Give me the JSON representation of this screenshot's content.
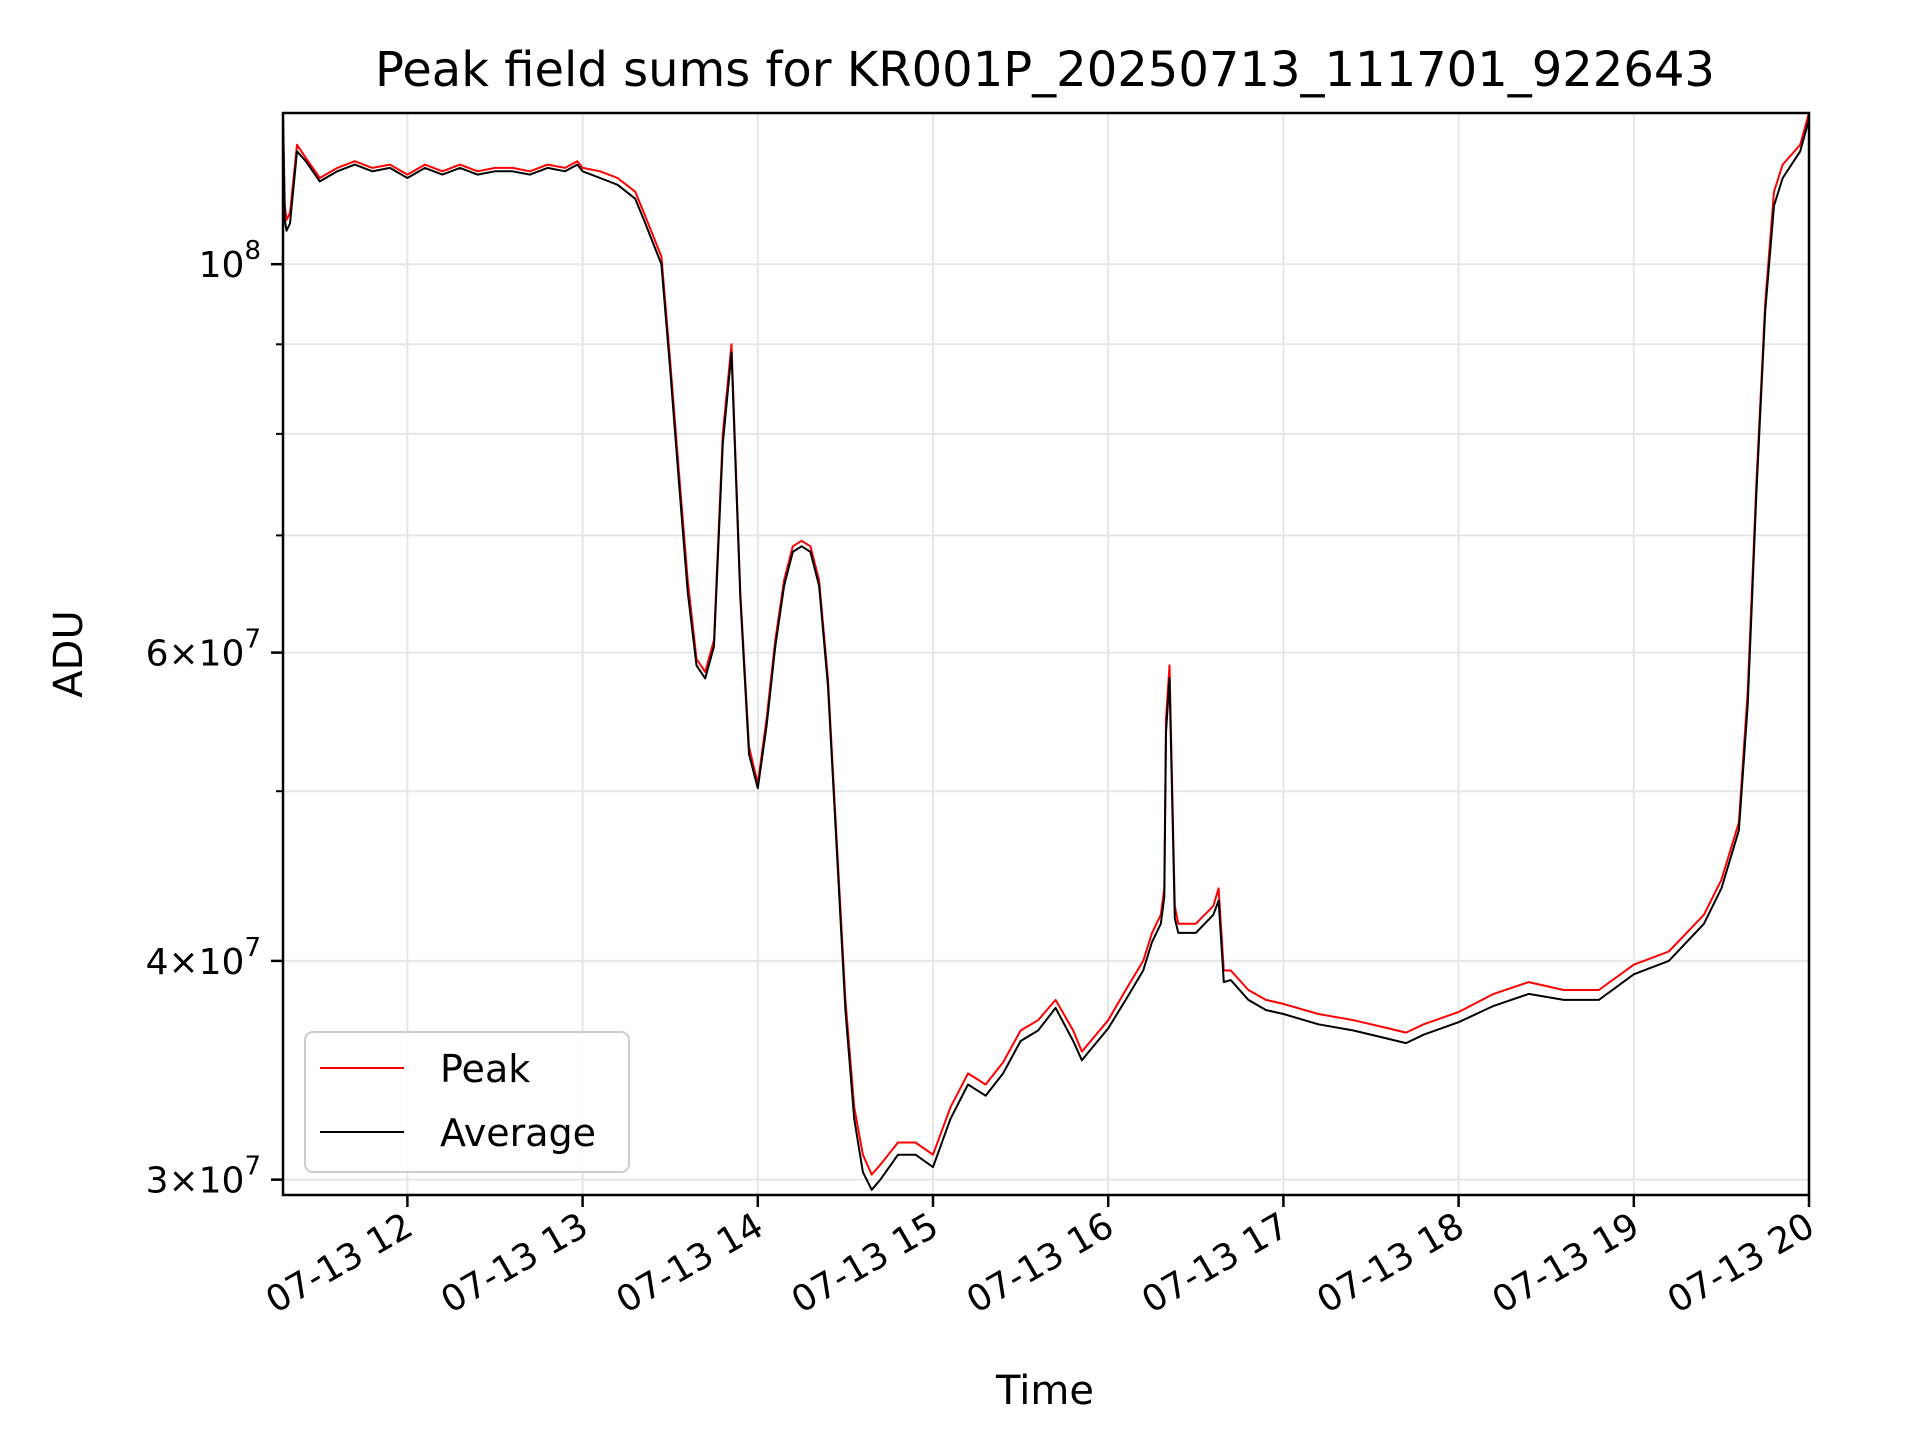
{
  "chart_data": {
    "type": "line",
    "title": "Peak field sums for KR001P_20250713_111701_922643",
    "xlabel": "Time",
    "ylabel": "ADU",
    "x_unit": "hours on 2025-07-13",
    "xlim": [
      11.29,
      20.0
    ],
    "ylim": [
      29400000,
      122000000
    ],
    "yscale": "log",
    "grid": true,
    "legend_position": "lower-left",
    "x_ticks": [
      {
        "value": 12,
        "label": "07-13 12"
      },
      {
        "value": 13,
        "label": "07-13 13"
      },
      {
        "value": 14,
        "label": "07-13 14"
      },
      {
        "value": 15,
        "label": "07-13 15"
      },
      {
        "value": 16,
        "label": "07-13 16"
      },
      {
        "value": 17,
        "label": "07-13 17"
      },
      {
        "value": 18,
        "label": "07-13 18"
      },
      {
        "value": 19,
        "label": "07-13 19"
      },
      {
        "value": 20,
        "label": "07-13 20"
      }
    ],
    "y_major_ticks": [
      {
        "value": 30000000,
        "mantissa": "3",
        "times": "×",
        "base": "10",
        "exp": "7"
      },
      {
        "value": 40000000,
        "mantissa": "4",
        "times": "×",
        "base": "10",
        "exp": "7"
      },
      {
        "value": 60000000,
        "mantissa": "6",
        "times": "×",
        "base": "10",
        "exp": "7"
      },
      {
        "value": 100000000,
        "mantissa": "",
        "times": "",
        "base": "10",
        "exp": "8"
      }
    ],
    "y_minor_ticks": [
      50000000,
      70000000,
      80000000,
      90000000
    ],
    "series": [
      {
        "name": "Peak",
        "color": "#ff0000",
        "x": [
          11.29,
          11.3,
          11.31,
          11.33,
          11.37,
          11.42,
          11.5,
          11.6,
          11.7,
          11.8,
          11.9,
          12.0,
          12.1,
          12.2,
          12.3,
          12.4,
          12.5,
          12.6,
          12.7,
          12.8,
          12.9,
          12.97,
          13.0,
          13.1,
          13.2,
          13.3,
          13.35,
          13.45,
          13.5,
          13.55,
          13.6,
          13.65,
          13.7,
          13.75,
          13.8,
          13.85,
          13.9,
          13.95,
          14.0,
          14.05,
          14.1,
          14.15,
          14.2,
          14.25,
          14.3,
          14.35,
          14.4,
          14.45,
          14.5,
          14.55,
          14.6,
          14.65,
          14.7,
          14.8,
          14.9,
          15.0,
          15.1,
          15.2,
          15.3,
          15.4,
          15.5,
          15.6,
          15.7,
          15.8,
          15.85,
          15.9,
          16.0,
          16.1,
          16.2,
          16.25,
          16.3,
          16.32,
          16.33,
          16.35,
          16.38,
          16.4,
          16.5,
          16.6,
          16.63,
          16.66,
          16.7,
          16.8,
          16.9,
          17.0,
          17.2,
          17.4,
          17.6,
          17.7,
          17.8,
          18.0,
          18.2,
          18.4,
          18.6,
          18.8,
          19.0,
          19.2,
          19.4,
          19.5,
          19.6,
          19.65,
          19.7,
          19.75,
          19.8,
          19.85,
          19.9,
          19.95,
          20.0
        ],
        "values": [
          122000000,
          108000000,
          106000000,
          107000000,
          117000000,
          115000000,
          112000000,
          113500000,
          114500000,
          113500000,
          114000000,
          112500000,
          114000000,
          113000000,
          114000000,
          113000000,
          113500000,
          113500000,
          113000000,
          114000000,
          113500000,
          114500000,
          113500000,
          113000000,
          112000000,
          110000000,
          107000000,
          101000000,
          88000000,
          76000000,
          66000000,
          59500000,
          58500000,
          61000000,
          80000000,
          90000000,
          65000000,
          53000000,
          50500000,
          55000000,
          61000000,
          66000000,
          69000000,
          69500000,
          69000000,
          66000000,
          58000000,
          47000000,
          38000000,
          33000000,
          31000000,
          30200000,
          30600000,
          31500000,
          31500000,
          31000000,
          33000000,
          34500000,
          34000000,
          35000000,
          36500000,
          37000000,
          38000000,
          36500000,
          35500000,
          36000000,
          37000000,
          38500000,
          40000000,
          41500000,
          42500000,
          44000000,
          55000000,
          59000000,
          43000000,
          42000000,
          42000000,
          43000000,
          44000000,
          39500000,
          39500000,
          38500000,
          38000000,
          37800000,
          37300000,
          37000000,
          36600000,
          36400000,
          36800000,
          37400000,
          38300000,
          38900000,
          38500000,
          38500000,
          39800000,
          40500000,
          42500000,
          44500000,
          48000000,
          57000000,
          75000000,
          95000000,
          110000000,
          114000000,
          115500000,
          117000000,
          122000000
        ]
      },
      {
        "name": "Average",
        "color": "#000000",
        "x": [
          11.29,
          11.3,
          11.31,
          11.33,
          11.37,
          11.42,
          11.5,
          11.6,
          11.7,
          11.8,
          11.9,
          12.0,
          12.1,
          12.2,
          12.3,
          12.4,
          12.5,
          12.6,
          12.7,
          12.8,
          12.9,
          12.97,
          13.0,
          13.1,
          13.2,
          13.3,
          13.35,
          13.45,
          13.5,
          13.55,
          13.6,
          13.65,
          13.7,
          13.75,
          13.8,
          13.85,
          13.9,
          13.95,
          14.0,
          14.05,
          14.1,
          14.15,
          14.2,
          14.25,
          14.3,
          14.35,
          14.4,
          14.45,
          14.5,
          14.55,
          14.6,
          14.65,
          14.7,
          14.8,
          14.9,
          15.0,
          15.1,
          15.2,
          15.3,
          15.4,
          15.5,
          15.6,
          15.7,
          15.8,
          15.85,
          15.9,
          16.0,
          16.1,
          16.2,
          16.25,
          16.3,
          16.32,
          16.33,
          16.35,
          16.38,
          16.4,
          16.5,
          16.6,
          16.63,
          16.66,
          16.7,
          16.8,
          16.9,
          17.0,
          17.2,
          17.4,
          17.6,
          17.7,
          17.8,
          18.0,
          18.2,
          18.4,
          18.6,
          18.8,
          19.0,
          19.2,
          19.4,
          19.5,
          19.6,
          19.65,
          19.7,
          19.75,
          19.8,
          19.85,
          19.9,
          19.95,
          20.0
        ],
        "values": [
          121000000,
          106000000,
          104500000,
          105500000,
          116000000,
          114500000,
          111500000,
          113000000,
          114000000,
          113000000,
          113500000,
          112000000,
          113500000,
          112500000,
          113500000,
          112500000,
          113000000,
          113000000,
          112500000,
          113500000,
          113000000,
          114000000,
          113000000,
          112000000,
          111000000,
          109000000,
          106000000,
          100000000,
          87000000,
          75000000,
          65000000,
          59000000,
          58000000,
          60500000,
          79000000,
          89000000,
          64500000,
          52500000,
          50200000,
          54500000,
          60500000,
          65500000,
          68500000,
          69000000,
          68500000,
          65500000,
          57500000,
          46500000,
          37500000,
          32500000,
          30300000,
          29600000,
          30000000,
          31000000,
          31000000,
          30500000,
          32500000,
          34000000,
          33500000,
          34500000,
          36000000,
          36500000,
          37600000,
          36000000,
          35100000,
          35600000,
          36600000,
          38000000,
          39500000,
          41000000,
          42000000,
          43500000,
          54000000,
          58000000,
          42300000,
          41500000,
          41500000,
          42500000,
          43300000,
          38900000,
          39000000,
          38000000,
          37500000,
          37300000,
          36800000,
          36500000,
          36100000,
          35900000,
          36300000,
          36900000,
          37700000,
          38300000,
          38000000,
          38000000,
          39300000,
          40000000,
          42000000,
          44000000,
          47500000,
          56000000,
          74000000,
          94000000,
          108000000,
          112000000,
          114000000,
          116000000,
          121000000
        ]
      }
    ]
  }
}
